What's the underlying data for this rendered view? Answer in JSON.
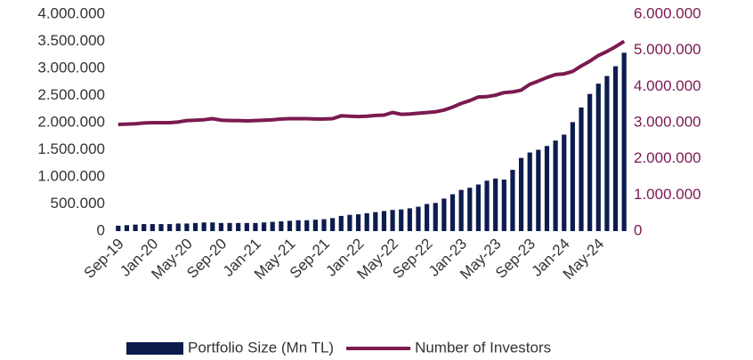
{
  "chart_data": {
    "type": "bar_line",
    "categories": [
      "Sep-19",
      null,
      null,
      null,
      "Jan-20",
      null,
      null,
      null,
      "May-20",
      null,
      null,
      null,
      "Sep-20",
      null,
      null,
      null,
      "Jan-21",
      null,
      null,
      null,
      "May-21",
      null,
      null,
      null,
      "Sep-21",
      null,
      null,
      null,
      "Jan-22",
      null,
      null,
      null,
      "May-22",
      null,
      null,
      null,
      "Sep-22",
      null,
      null,
      null,
      "Jan-23",
      null,
      null,
      null,
      "May-23",
      null,
      null,
      null,
      "Sep-23",
      null,
      null,
      null,
      "Jan-24",
      null,
      null,
      null,
      "May-24",
      null,
      null,
      null
    ],
    "series": [
      {
        "name": "Portfolio Size (Mn TL)",
        "color": "#0d1c4f",
        "axis": "y",
        "values": [
          100000,
          110000,
          120000,
          130000,
          130000,
          130000,
          130000,
          140000,
          140000,
          150000,
          160000,
          160000,
          150000,
          150000,
          150000,
          150000,
          150000,
          160000,
          170000,
          180000,
          190000,
          200000,
          200000,
          210000,
          220000,
          240000,
          280000,
          300000,
          310000,
          330000,
          350000,
          370000,
          390000,
          400000,
          420000,
          450000,
          500000,
          520000,
          600000,
          680000,
          760000,
          800000,
          860000,
          930000,
          970000,
          950000,
          1130000,
          1350000,
          1450000,
          1500000,
          1570000,
          1670000,
          1780000,
          2010000,
          2280000,
          2530000,
          2720000,
          2860000,
          3040000,
          3290000
        ]
      },
      {
        "name": "Number of Investors",
        "color": "#7b1a4f",
        "axis": "y2",
        "values": [
          2950000,
          2960000,
          2970000,
          2990000,
          3000000,
          3000000,
          3000000,
          3020000,
          3060000,
          3070000,
          3080000,
          3110000,
          3070000,
          3060000,
          3060000,
          3050000,
          3060000,
          3070000,
          3080000,
          3100000,
          3110000,
          3110000,
          3110000,
          3100000,
          3100000,
          3110000,
          3190000,
          3180000,
          3170000,
          3180000,
          3200000,
          3210000,
          3280000,
          3230000,
          3240000,
          3260000,
          3280000,
          3300000,
          3350000,
          3430000,
          3530000,
          3610000,
          3710000,
          3720000,
          3760000,
          3830000,
          3850000,
          3900000,
          4060000,
          4150000,
          4250000,
          4330000,
          4350000,
          4420000,
          4570000,
          4700000,
          4860000,
          4970000,
          5100000,
          5250000
        ]
      }
    ],
    "ylim": [
      0,
      4000000
    ],
    "yticks": [
      {
        "value": 0,
        "label": "0"
      },
      {
        "value": 500000,
        "label": "500.000"
      },
      {
        "value": 1000000,
        "label": "1.000.000"
      },
      {
        "value": 1500000,
        "label": "1.500.000"
      },
      {
        "value": 2000000,
        "label": "2.000.000"
      },
      {
        "value": 2500000,
        "label": "2.500.000"
      },
      {
        "value": 3000000,
        "label": "3.000.000"
      },
      {
        "value": 3500000,
        "label": "3.500.000"
      },
      {
        "value": 4000000,
        "label": "4.000.000"
      }
    ],
    "y2lim": [
      0,
      6000000
    ],
    "y2ticks": [
      {
        "value": 0,
        "label": "0"
      },
      {
        "value": 1000000,
        "label": "1.000.000"
      },
      {
        "value": 2000000,
        "label": "2.000.000"
      },
      {
        "value": 3000000,
        "label": "3.000.000"
      },
      {
        "value": 4000000,
        "label": "4.000.000"
      },
      {
        "value": 5000000,
        "label": "5.000.000"
      },
      {
        "value": 6000000,
        "label": "6.000.000"
      }
    ],
    "legend": "bottom"
  }
}
